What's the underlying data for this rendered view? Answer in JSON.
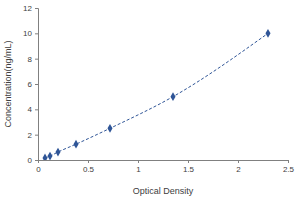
{
  "chart_data": {
    "type": "line",
    "x_label": "Optical Density",
    "y_label": "Concentration(ng/mL)",
    "x": [
      0.07,
      0.12,
      0.2,
      0.38,
      0.72,
      1.35,
      2.3
    ],
    "values": [
      0.16,
      0.31,
      0.63,
      1.25,
      2.5,
      5,
      10
    ],
    "color": "#2f5597",
    "marker": "diamond",
    "line_style": "dashed",
    "xlim": [
      0,
      2.5
    ],
    "xticks": [
      0,
      0.5,
      1,
      1.5,
      2,
      2.5
    ],
    "ylim": [
      0,
      12
    ],
    "yticks": [
      0,
      2,
      4,
      6,
      8,
      10,
      12
    ],
    "grid": false
  }
}
